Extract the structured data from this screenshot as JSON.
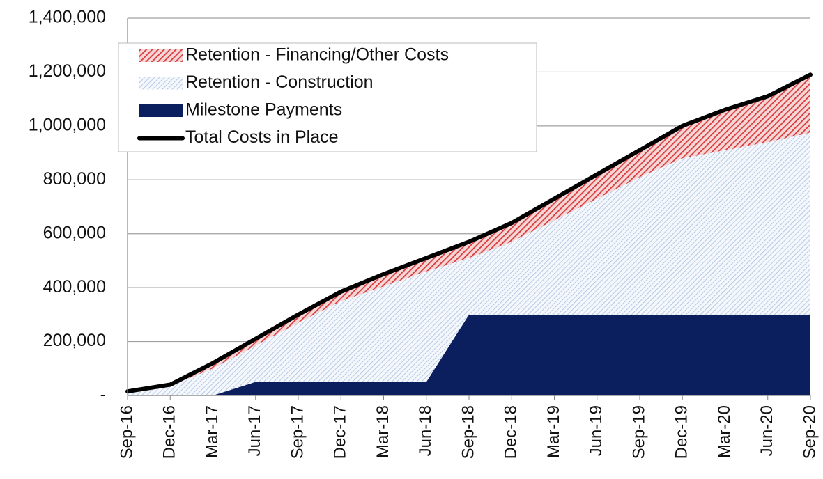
{
  "chart_data": {
    "type": "stacked_area",
    "categories": [
      "Sep-16",
      "Dec-16",
      "Mar-17",
      "Jun-17",
      "Sep-17",
      "Dec-17",
      "Mar-18",
      "Jun-18",
      "Sep-18",
      "Dec-18",
      "Mar-19",
      "Jun-19",
      "Sep-19",
      "Dec-19",
      "Mar-20",
      "Jun-20",
      "Sep-20"
    ],
    "series": [
      {
        "name": "Retention - Financing/Other Costs",
        "color": "#d63a3a",
        "pattern": "hatch",
        "values": [
          0,
          5000,
          20000,
          25000,
          30000,
          35000,
          45000,
          50000,
          60000,
          70000,
          80000,
          90000,
          100000,
          120000,
          150000,
          170000,
          215000
        ]
      },
      {
        "name": "Retention - Construction",
        "color": "#a9bedd",
        "pattern": "hatch",
        "values": [
          15000,
          35000,
          100000,
          135000,
          220000,
          300000,
          355000,
          410000,
          210000,
          270000,
          350000,
          430000,
          510000,
          580000,
          610000,
          640000,
          675000
        ]
      },
      {
        "name": "Milestone Payments",
        "color": "#0b1f5e",
        "pattern": "solid",
        "values": [
          0,
          0,
          0,
          50000,
          50000,
          50000,
          50000,
          50000,
          300000,
          300000,
          300000,
          300000,
          300000,
          300000,
          300000,
          300000,
          300000
        ]
      },
      {
        "name": "Total Costs in Place",
        "color": "#000000",
        "kind": "line",
        "values": [
          15000,
          40000,
          120000,
          210000,
          300000,
          385000,
          450000,
          510000,
          570000,
          640000,
          730000,
          820000,
          910000,
          1000000,
          1060000,
          1110000,
          1190000
        ]
      }
    ],
    "ylim": [
      0,
      1400000
    ],
    "yticks": [
      {
        "value": 0,
        "label": "-"
      },
      {
        "value": 200000,
        "label": "200,000"
      },
      {
        "value": 400000,
        "label": "400,000"
      },
      {
        "value": 600000,
        "label": "600,000"
      },
      {
        "value": 800000,
        "label": "800,000"
      },
      {
        "value": 1000000,
        "label": "1,000,000"
      },
      {
        "value": 1200000,
        "label": "1,200,000"
      },
      {
        "value": 1400000,
        "label": "1,400,000"
      }
    ],
    "grid": true,
    "legend": "top-left"
  }
}
